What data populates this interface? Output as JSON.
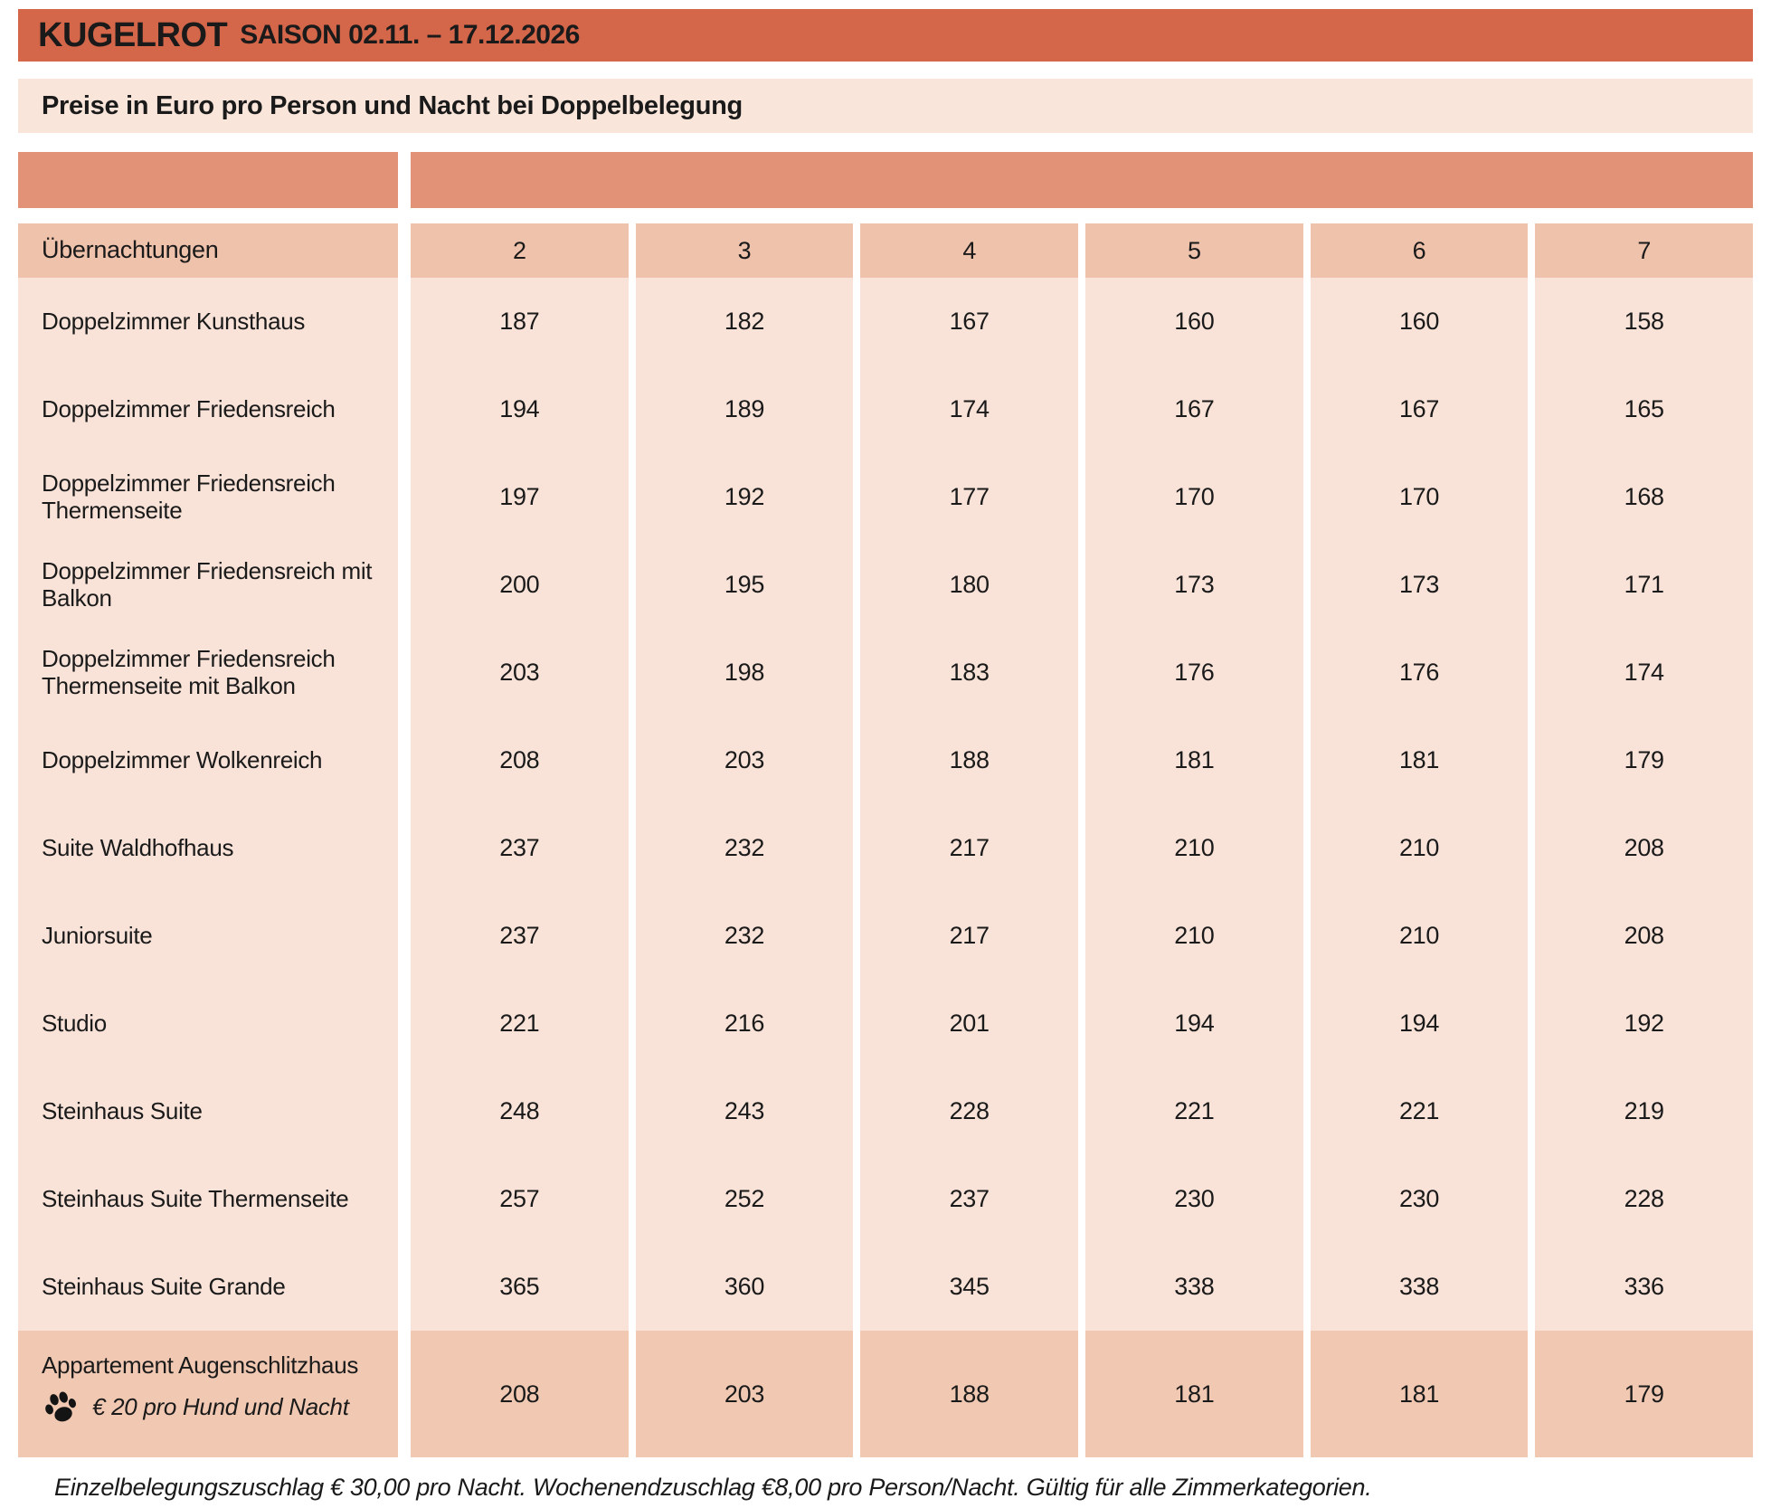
{
  "header": {
    "title": "KUGELROT",
    "season": "SAISON 02.11. – 17.12.2026",
    "subtitle": "Preise in Euro pro Person und Nacht bei Doppelbelegung"
  },
  "table": {
    "corner_label": "Übernachtungen",
    "nights": [
      "2",
      "3",
      "4",
      "5",
      "6",
      "7"
    ],
    "rows": [
      {
        "label": "Doppelzimmer Kunsthaus",
        "prices": [
          187,
          182,
          167,
          160,
          160,
          158
        ]
      },
      {
        "label": "Doppelzimmer Friedensreich",
        "prices": [
          194,
          189,
          174,
          167,
          167,
          165
        ]
      },
      {
        "label": "Doppelzimmer Friedensreich Thermenseite",
        "prices": [
          197,
          192,
          177,
          170,
          170,
          168
        ]
      },
      {
        "label": "Doppelzimmer Friedensreich mit Balkon",
        "prices": [
          200,
          195,
          180,
          173,
          173,
          171
        ]
      },
      {
        "label": "Doppelzimmer Friedensreich Thermenseite mit Balkon",
        "prices": [
          203,
          198,
          183,
          176,
          176,
          174
        ]
      },
      {
        "label": "Doppelzimmer Wolkenreich",
        "prices": [
          208,
          203,
          188,
          181,
          181,
          179
        ]
      },
      {
        "label": "Suite Waldhofhaus",
        "prices": [
          237,
          232,
          217,
          210,
          210,
          208
        ]
      },
      {
        "label": "Juniorsuite",
        "prices": [
          237,
          232,
          217,
          210,
          210,
          208
        ]
      },
      {
        "label": "Studio",
        "prices": [
          221,
          216,
          201,
          194,
          194,
          192
        ]
      },
      {
        "label": "Steinhaus Suite",
        "prices": [
          248,
          243,
          228,
          221,
          221,
          219
        ]
      },
      {
        "label": "Steinhaus Suite Thermenseite",
        "prices": [
          257,
          252,
          237,
          230,
          230,
          228
        ]
      },
      {
        "label": "Steinhaus Suite Grande",
        "prices": [
          365,
          360,
          345,
          338,
          338,
          336
        ]
      }
    ],
    "special_row": {
      "label": "Appartement Augenschlitzhaus",
      "icon": "paw-icon",
      "note": "€ 20 pro Hund und Nacht",
      "prices": [
        208,
        203,
        188,
        181,
        181,
        179
      ]
    }
  },
  "footer": {
    "note": "Einzelbelegungszuschlag € 30,00 pro Nacht. Wochenendzuschlag €8,00 pro Person/Nacht. Gültig für alle Zimmerkategorien."
  },
  "colors": {
    "title_bar": "#d4664a",
    "subtitle_bar": "#f9e5da",
    "band": "#e29277",
    "header_row": "#efc2ac",
    "body_row": "#f9e3d8",
    "special_row": "#f1c9b3",
    "text": "#1a1a1a"
  }
}
